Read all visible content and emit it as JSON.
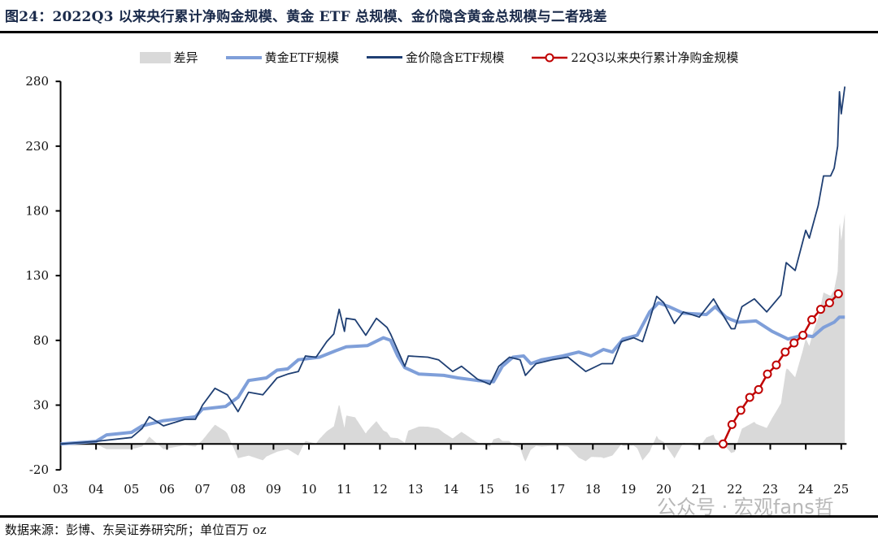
{
  "title": "图24：2022Q3 以来央行累计净购金规模、黄金 ETF 总规模、金价隐含黄金总规模与二者残差",
  "footer": "数据来源：彭博、东吴证券研究所；单位百万 oz",
  "watermark": "公众号 · 宏观fans哲",
  "chart_data": {
    "type": "line",
    "title": "2022Q3 以来央行累计净购金规模、黄金 ETF 总规模、金价隐含黄金总规模与二者残差",
    "xlabel": "",
    "ylabel": "",
    "ylim": [
      -20,
      280
    ],
    "xlim": [
      2003,
      2025.1
    ],
    "yticks": [
      "280",
      "230",
      "180",
      "130",
      "80",
      "30",
      "-20"
    ],
    "ytick_values": [
      280,
      230,
      180,
      130,
      80,
      30,
      -20
    ],
    "xticks": [
      "03",
      "04",
      "05",
      "06",
      "07",
      "08",
      "09",
      "10",
      "11",
      "12",
      "13",
      "14",
      "15",
      "16",
      "17",
      "18",
      "19",
      "20",
      "21",
      "22",
      "23",
      "24",
      "25"
    ],
    "grid": false,
    "legend_position": "top",
    "colors": {
      "diff": "#d9d9d9",
      "etf": "#7f9fd9",
      "implied": "#1f3f73",
      "cb": "#c00000"
    },
    "series": [
      {
        "name": "差异",
        "type": "area"
      },
      {
        "name": "黄金ETF规模",
        "type": "line",
        "points": [
          [
            2003,
            0
          ],
          [
            2004,
            2
          ],
          [
            2004.3,
            7
          ],
          [
            2005,
            9
          ],
          [
            2005.3,
            14
          ],
          [
            2005.9,
            18
          ],
          [
            2006.8,
            21
          ],
          [
            2007,
            27
          ],
          [
            2007.65,
            29
          ],
          [
            2008,
            36
          ],
          [
            2008.3,
            49
          ],
          [
            2008.8,
            51
          ],
          [
            2009.1,
            57
          ],
          [
            2009.4,
            58
          ],
          [
            2009.7,
            65
          ],
          [
            2010.3,
            67
          ],
          [
            2010.75,
            72
          ],
          [
            2011.05,
            75
          ],
          [
            2011.65,
            76
          ],
          [
            2012.1,
            82
          ],
          [
            2012.3,
            80
          ],
          [
            2012.5,
            68
          ],
          [
            2012.7,
            59
          ],
          [
            2013.1,
            54
          ],
          [
            2013.8,
            53
          ],
          [
            2014.2,
            51
          ],
          [
            2014.75,
            49
          ],
          [
            2015.2,
            48
          ],
          [
            2015.45,
            60
          ],
          [
            2015.75,
            67
          ],
          [
            2016.05,
            68
          ],
          [
            2016.25,
            62
          ],
          [
            2016.55,
            65
          ],
          [
            2017.15,
            68
          ],
          [
            2017.6,
            71
          ],
          [
            2017.95,
            68
          ],
          [
            2018.3,
            73
          ],
          [
            2018.55,
            71
          ],
          [
            2018.85,
            81
          ],
          [
            2019.25,
            84
          ],
          [
            2019.6,
            102
          ],
          [
            2019.85,
            109
          ],
          [
            2020.15,
            106
          ],
          [
            2020.55,
            101
          ],
          [
            2021.2,
            100
          ],
          [
            2021.45,
            106
          ],
          [
            2021.75,
            98
          ],
          [
            2021.9,
            96
          ],
          [
            2022.1,
            94
          ],
          [
            2022.6,
            95
          ],
          [
            2023.05,
            87
          ],
          [
            2023.5,
            81
          ],
          [
            2023.9,
            84
          ],
          [
            2024.2,
            83
          ],
          [
            2024.5,
            90
          ],
          [
            2024.8,
            94
          ],
          [
            2024.95,
            98
          ],
          [
            2025.1,
            98
          ]
        ]
      },
      {
        "name": "金价隐含ETF规模",
        "type": "line",
        "points": [
          [
            2003,
            0
          ],
          [
            2004,
            2
          ],
          [
            2005,
            5
          ],
          [
            2005.3,
            12
          ],
          [
            2005.5,
            21
          ],
          [
            2005.9,
            14
          ],
          [
            2006.5,
            19
          ],
          [
            2006.8,
            19
          ],
          [
            2007,
            30
          ],
          [
            2007.35,
            43
          ],
          [
            2007.7,
            38
          ],
          [
            2008,
            25
          ],
          [
            2008.3,
            40
          ],
          [
            2008.7,
            38
          ],
          [
            2009.1,
            51
          ],
          [
            2009.4,
            54
          ],
          [
            2009.7,
            56
          ],
          [
            2009.9,
            68
          ],
          [
            2010.2,
            67
          ],
          [
            2010.5,
            79
          ],
          [
            2010.7,
            85
          ],
          [
            2010.85,
            104
          ],
          [
            2011,
            87
          ],
          [
            2011.05,
            97
          ],
          [
            2011.3,
            96
          ],
          [
            2011.6,
            84
          ],
          [
            2011.9,
            97
          ],
          [
            2012.2,
            90
          ],
          [
            2012.3,
            85
          ],
          [
            2012.7,
            60
          ],
          [
            2012.8,
            68
          ],
          [
            2013.35,
            67
          ],
          [
            2013.65,
            65
          ],
          [
            2014.05,
            56
          ],
          [
            2014.3,
            60
          ],
          [
            2014.75,
            50
          ],
          [
            2015.1,
            46
          ],
          [
            2015.35,
            60
          ],
          [
            2015.65,
            67
          ],
          [
            2015.95,
            65
          ],
          [
            2016.1,
            53
          ],
          [
            2016.4,
            62
          ],
          [
            2016.85,
            65
          ],
          [
            2017.3,
            67
          ],
          [
            2017.8,
            56
          ],
          [
            2018.25,
            62
          ],
          [
            2018.55,
            62
          ],
          [
            2018.8,
            79
          ],
          [
            2019.15,
            82
          ],
          [
            2019.4,
            79
          ],
          [
            2019.6,
            96
          ],
          [
            2019.8,
            114
          ],
          [
            2020,
            109
          ],
          [
            2020.3,
            93
          ],
          [
            2020.55,
            102
          ],
          [
            2021,
            98
          ],
          [
            2021.4,
            112
          ],
          [
            2021.7,
            98
          ],
          [
            2021.9,
            89
          ],
          [
            2022,
            89
          ],
          [
            2022.2,
            106
          ],
          [
            2022.55,
            112
          ],
          [
            2022.9,
            102
          ],
          [
            2023.3,
            115
          ],
          [
            2023.45,
            140
          ],
          [
            2023.7,
            134
          ],
          [
            2024,
            165
          ],
          [
            2024.1,
            159
          ],
          [
            2024.35,
            184
          ],
          [
            2024.5,
            207
          ],
          [
            2024.7,
            207
          ],
          [
            2024.8,
            213
          ],
          [
            2024.9,
            230
          ],
          [
            2024.95,
            272
          ],
          [
            2025,
            255
          ],
          [
            2025.1,
            276
          ]
        ]
      },
      {
        "name": "22Q3以来央行累计净购金规模",
        "type": "line-marker",
        "points": [
          [
            2021.67,
            0
          ],
          [
            2021.92,
            15
          ],
          [
            2022.17,
            26
          ],
          [
            2022.42,
            36
          ],
          [
            2022.67,
            42
          ],
          [
            2022.92,
            54
          ],
          [
            2023.17,
            61
          ],
          [
            2023.42,
            71
          ],
          [
            2023.67,
            78
          ],
          [
            2023.92,
            84
          ],
          [
            2024.17,
            96
          ],
          [
            2024.42,
            104
          ],
          [
            2024.67,
            109
          ],
          [
            2024.92,
            116
          ]
        ]
      }
    ]
  }
}
